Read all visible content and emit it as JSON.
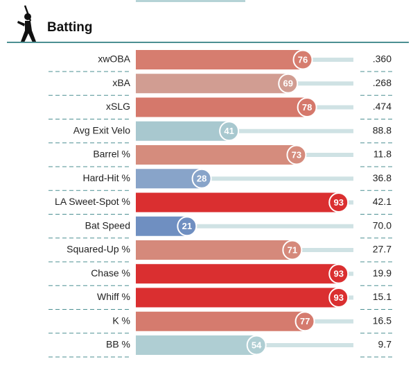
{
  "chart_data": {
    "type": "bar",
    "title": "Batting",
    "categories": [
      "xwOBA",
      "xBA",
      "xSLG",
      "Avg Exit Velo",
      "Barrel %",
      "Hard-Hit %",
      "LA Sweet-Spot %",
      "Bat Speed",
      "Squared-Up %",
      "Chase %",
      "Whiff %",
      "K %",
      "BB %"
    ],
    "values": [
      76,
      69,
      78,
      41,
      73,
      28,
      93,
      21,
      71,
      93,
      93,
      77,
      54
    ],
    "colors": [
      "#d67d6f",
      "#d19d92",
      "#d5786b",
      "#a8c8cf",
      "#d58c7d",
      "#88a4c9",
      "#da2f30",
      "#6f8fc1",
      "#d5897b",
      "#da2f30",
      "#da2f30",
      "#d57b6e",
      "#afced3"
    ],
    "stats": [
      ".360",
      ".268",
      ".474",
      "88.8",
      "11.8",
      "36.8",
      "42.1",
      "70.0",
      "27.7",
      "19.9",
      "15.1",
      "16.5",
      "9.7"
    ],
    "xlim": [
      0,
      100
    ]
  }
}
